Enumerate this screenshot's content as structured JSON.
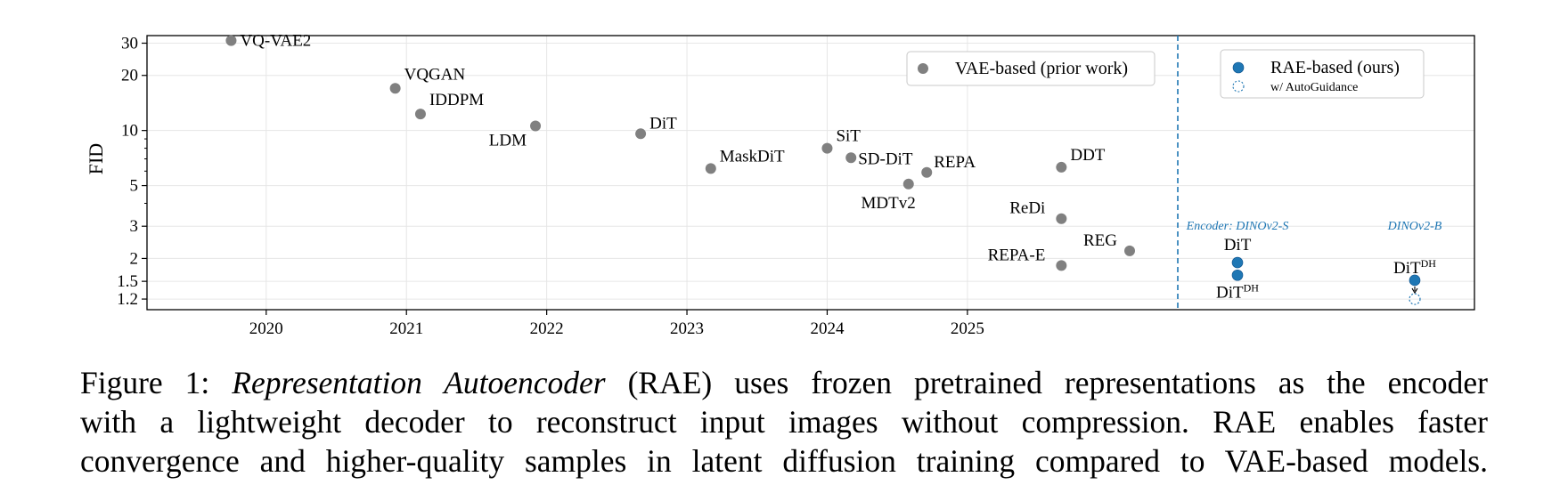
{
  "chart_data": {
    "type": "scatter",
    "ylabel": "FID",
    "y_scale": "log",
    "y_ticks": [
      "30",
      "20",
      "10",
      "5",
      "3",
      "2",
      "1.5",
      "1.2"
    ],
    "y_tick_values": [
      30,
      20,
      10,
      5,
      3,
      2,
      1.5,
      1.2
    ],
    "ylim": [
      1.05,
      33
    ],
    "x_ticks": [
      "2020",
      "2021",
      "2022",
      "2023",
      "2024",
      "2025"
    ],
    "xlim": [
      2019.15,
      2026.5
    ],
    "grid": true,
    "series": [
      {
        "name": "VAE-based (prior work)",
        "color": "#808080",
        "points": [
          {
            "label": "VQ-VAE2",
            "x": 2019.75,
            "y": 31
          },
          {
            "label": "VQGAN",
            "x": 2020.92,
            "y": 17
          },
          {
            "label": "IDDPM",
            "x": 2021.1,
            "y": 12.3
          },
          {
            "label": "LDM",
            "x": 2021.92,
            "y": 10.6
          },
          {
            "label": "DiT",
            "x": 2022.67,
            "y": 9.6
          },
          {
            "label": "MaskDiT",
            "x": 2023.17,
            "y": 6.2
          },
          {
            "label": "SiT",
            "x": 2024.0,
            "y": 8.0
          },
          {
            "label": "SD-DiT",
            "x": 2024.17,
            "y": 7.1
          },
          {
            "label": "MDTv2",
            "x": 2024.58,
            "y": 5.1
          },
          {
            "label": "REPA",
            "x": 2024.71,
            "y": 5.9
          },
          {
            "label": "DDT",
            "x": 2025.67,
            "y": 6.3
          },
          {
            "label": "ReDi",
            "x": 2025.67,
            "y": 3.3
          },
          {
            "label": "REPA-E",
            "x": 2025.67,
            "y": 1.83
          },
          {
            "label": "REG",
            "x": 2026.78,
            "y": 2.2
          }
        ]
      },
      {
        "name": "RAE-based (ours)",
        "color": "#1f77b4",
        "points": [
          {
            "label": "DiT",
            "group": "Encoder: DINOv2-S",
            "y": 1.9
          },
          {
            "label": "DiT",
            "label_sup": "DH",
            "group": "Encoder: DINOv2-S",
            "y": 1.62
          },
          {
            "label": "DiT",
            "label_sup": "DH",
            "group": "DINOv2-B",
            "y": 1.52
          }
        ]
      },
      {
        "name": "w/ AutoGuidance",
        "color": "#1f77b4",
        "style": "dotted-hollow",
        "points": [
          {
            "label": "",
            "group": "DINOv2-B",
            "y": 1.2
          }
        ]
      }
    ],
    "legends": [
      {
        "entries": [
          "VAE-based (prior work)"
        ],
        "placement": "top-right of left panel"
      },
      {
        "entries": [
          "RAE-based (ours)",
          "w/ AutoGuidance"
        ],
        "placement": "top of right panel"
      }
    ],
    "panel_annotations": [
      "Encoder: DINOv2-S",
      "DINOv2-B"
    ]
  },
  "caption": {
    "prefix": "Figure 1: ",
    "title_italic": "Representation Autoencoder",
    "line1_rest": " (RAE) uses frozen pretrained representations as the encoder",
    "line2": "with a lightweight decoder to reconstruct input images without compression.  RAE enables faster",
    "line3": "convergence and higher-quality samples in latent diffusion training compared to VAE-based models."
  }
}
